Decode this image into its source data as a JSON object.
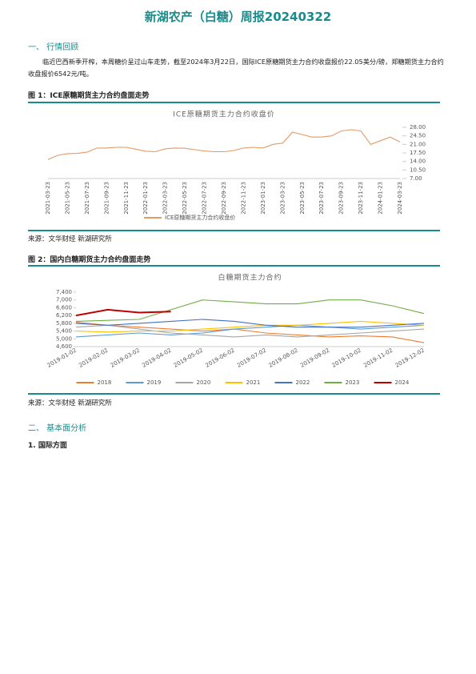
{
  "title": "新湖农产（白糖）周报20240322",
  "sections": [
    {
      "heading": "一、 行情回顾",
      "paragraph": "临近巴西新季开榨，本周糖价呈过山车走势，截至2024年3月22日，国际ICE原糖期货主力合约收盘报价22.05美分/磅，郑糖期货主力合约收盘报价6542元/吨。"
    },
    {
      "heading": "二、 基本面分析",
      "subheading": "1. 国际方面"
    }
  ],
  "figures": [
    {
      "caption": "图 1：ICE原糖期货主力合约盘面走势",
      "source": "来源：文华财经 新湖研究所"
    },
    {
      "caption": "图 2：国内白糖期货主力合约盘面走势",
      "source": "来源：文华财经 新湖研究所"
    }
  ],
  "chart_data": [
    {
      "type": "line",
      "title": "ICE原糖期货主力合约收盘价",
      "y_axis": "right",
      "legend": "bottom",
      "categories": [
        "2021-03-23",
        null,
        "2021-05-23",
        null,
        "2021-07-23",
        null,
        "2021-09-23",
        null,
        "2021-11-23",
        null,
        "2022-01-23",
        null,
        "2022-03-23",
        null,
        "2022-05-23",
        null,
        "2022-07-23",
        null,
        "2022-09-23",
        null,
        "2022-11-23",
        null,
        "2023-01-23",
        null,
        "2023-03-23",
        null,
        "2023-05-23",
        null,
        "2023-07-23",
        null,
        "2023-09-23",
        null,
        "2023-11-23",
        null,
        "2024-01-23",
        null,
        "2024-03-23"
      ],
      "series": [
        {
          "name": "ICE原糖期货主力合约收盘价",
          "color": "#e59a66",
          "values": [
            14.8,
            16.5,
            17.2,
            17.3,
            17.8,
            19.5,
            19.5,
            19.8,
            19.8,
            19.0,
            18.2,
            18.0,
            19.2,
            19.5,
            19.4,
            18.8,
            18.3,
            18.0,
            18.0,
            18.5,
            19.5,
            19.8,
            19.5,
            21.0,
            21.5,
            26.0,
            25.0,
            24.0,
            24.0,
            24.5,
            26.5,
            27.0,
            26.5,
            21.0,
            22.5,
            24.0,
            22.0
          ]
        }
      ],
      "ylim": [
        7,
        28
      ],
      "yticks": [
        {
          "value": 28,
          "label": "28.00"
        },
        {
          "value": 24.5,
          "label": "24.50"
        },
        {
          "value": 21,
          "label": "21.00"
        },
        {
          "value": 17.5,
          "label": "17.50"
        },
        {
          "value": 14,
          "label": "14.00"
        },
        {
          "value": 10.5,
          "label": "10.50"
        },
        {
          "value": 7,
          "label": "7.00"
        }
      ]
    },
    {
      "type": "line",
      "title": "白糖期货主力合约",
      "y_axis": "left",
      "legend": "bottom",
      "categories": [
        "2019-01-02",
        "2019-02-02",
        "2019-03-02",
        "2019-04-02",
        "2019-05-02",
        "2019-06-02",
        "2019-07-02",
        "2019-08-02",
        "2019-09-02",
        "2019-10-02",
        "2019-11-02",
        "2019-12-02"
      ],
      "series": [
        {
          "name": "2018",
          "color": "#ed7d31",
          "values": [
            5850,
            5700,
            5600,
            5500,
            5400,
            5500,
            5300,
            5200,
            5100,
            5150,
            5100,
            4800
          ]
        },
        {
          "name": "2019",
          "color": "#5b9bd5",
          "values": [
            5100,
            5200,
            5300,
            5200,
            5300,
            5500,
            5600,
            5700,
            5600,
            5500,
            5600,
            5700
          ]
        },
        {
          "name": "2020",
          "color": "#a5a5a5",
          "values": [
            5600,
            5700,
            5500,
            5300,
            5200,
            5100,
            5200,
            5100,
            5200,
            5300,
            5400,
            5500
          ]
        },
        {
          "name": "2021",
          "color": "#ffc000",
          "values": [
            5400,
            5350,
            5400,
            5400,
            5500,
            5600,
            5700,
            5700,
            5800,
            5900,
            5800,
            5700
          ]
        },
        {
          "name": "2022",
          "color": "#4472c4",
          "values": [
            5800,
            5700,
            5800,
            5900,
            6000,
            5900,
            5700,
            5600,
            5600,
            5600,
            5700,
            5800
          ]
        },
        {
          "name": "2023",
          "color": "#70ad47",
          "values": [
            5900,
            5950,
            6000,
            6500,
            7000,
            6900,
            6800,
            6800,
            7000,
            7000,
            6700,
            6300
          ]
        },
        {
          "name": "2024",
          "color": "#c00000",
          "values": [
            6200,
            6500,
            6350,
            6400,
            null,
            null,
            null,
            null,
            null,
            null,
            null,
            null
          ]
        }
      ],
      "ylim": [
        4600,
        7400
      ],
      "yticks": [
        {
          "value": 7400,
          "label": "7,400"
        },
        {
          "value": 7000,
          "label": "7,000"
        },
        {
          "value": 6600,
          "label": "6,600"
        },
        {
          "value": 6200,
          "label": "6,200"
        },
        {
          "value": 5800,
          "label": "5,800"
        },
        {
          "value": 5400,
          "label": "5,400"
        },
        {
          "value": 5000,
          "label": "5,000"
        },
        {
          "value": 4600,
          "label": "4,600"
        }
      ]
    }
  ]
}
